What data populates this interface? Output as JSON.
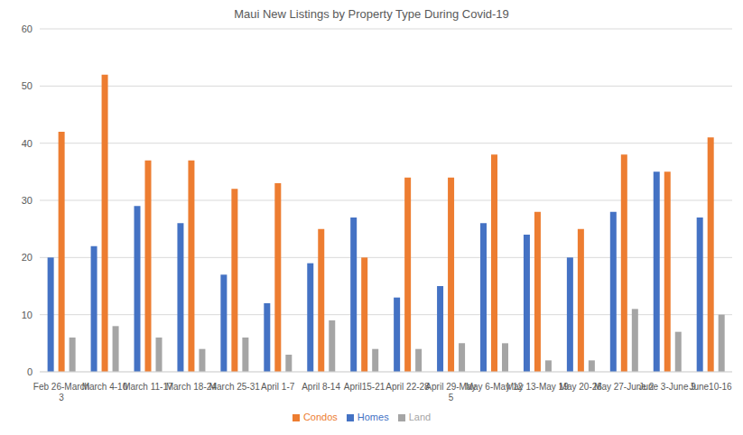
{
  "chart_data": {
    "type": "bar",
    "title": "Maui New Listings by Property Type During Covid-19",
    "categories": [
      "Feb 26-March 3",
      "March 4-10",
      "March 11-17",
      "March 18-24",
      "March 25-31",
      "April 1-7",
      "April 8-14",
      "April15-21",
      "April 22-28",
      "April 29-May 5",
      "May 6-May 12",
      "May 13-May 19",
      "May 20-26",
      "May 27-June 2",
      "June 3-June 9",
      "June10-16"
    ],
    "series": [
      {
        "name": "Homes",
        "color": "#4472c4",
        "values": [
          20,
          22,
          29,
          26,
          17,
          12,
          19,
          27,
          13,
          15,
          26,
          24,
          20,
          28,
          35,
          27
        ]
      },
      {
        "name": "Condos",
        "color": "#ed7d31",
        "values": [
          42,
          52,
          37,
          37,
          32,
          33,
          25,
          20,
          34,
          34,
          38,
          28,
          25,
          38,
          35,
          41
        ]
      },
      {
        "name": "Land",
        "color": "#a5a5a5",
        "values": [
          6,
          8,
          6,
          4,
          6,
          3,
          9,
          4,
          4,
          5,
          5,
          2,
          2,
          11,
          7,
          10
        ]
      }
    ],
    "ylim": [
      0,
      60
    ],
    "yticks": [
      0,
      10,
      20,
      30,
      40,
      50,
      60
    ],
    "grid": true,
    "legend": "bottom"
  }
}
